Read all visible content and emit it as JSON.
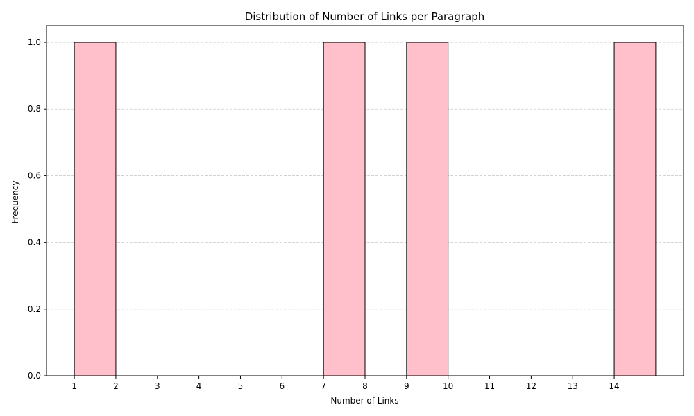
{
  "chart_data": {
    "type": "bar",
    "title": "Distribution of Number of Links per Paragraph",
    "xlabel": "Number of Links",
    "ylabel": "Frequency",
    "bins": [
      {
        "start": 1,
        "end": 2,
        "value": 1
      },
      {
        "start": 7,
        "end": 8,
        "value": 1
      },
      {
        "start": 9,
        "end": 10,
        "value": 1
      },
      {
        "start": 14,
        "end": 15,
        "value": 1
      }
    ],
    "xlim": [
      0.33,
      15.67
    ],
    "ylim": [
      0,
      1.05
    ],
    "x_ticks": [
      1,
      2,
      3,
      4,
      5,
      6,
      7,
      8,
      9,
      10,
      11,
      12,
      13,
      14
    ],
    "y_ticks": [
      0.0,
      0.2,
      0.4,
      0.6,
      0.8,
      1.0
    ],
    "y_tick_labels": [
      "0.0",
      "0.2",
      "0.4",
      "0.6",
      "0.8",
      "1.0"
    ],
    "bar_color": "#ffc0cb",
    "bar_edge_color": "#000000",
    "grid": {
      "axis": "y",
      "style": "dashed",
      "color": "#cccccc"
    },
    "legend": "none"
  }
}
